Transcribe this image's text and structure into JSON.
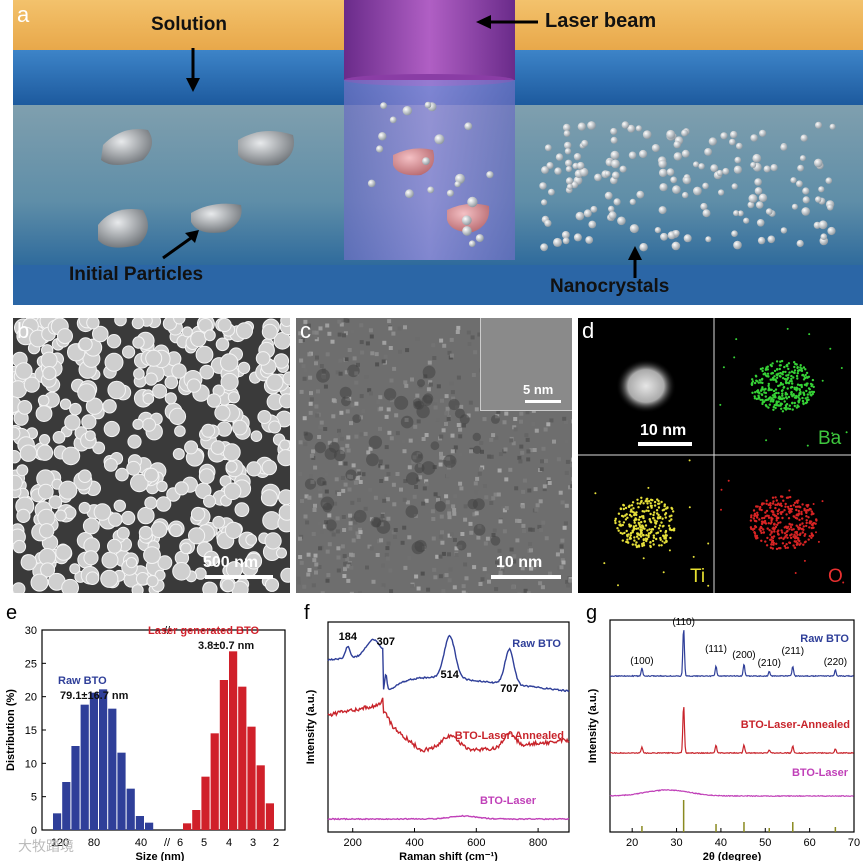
{
  "panel_a": {
    "letter": "a",
    "solution_label": "Solution",
    "laser_label": "Laser beam",
    "particles_label": "Initial Particles",
    "nano_label": "Nanocrystals"
  },
  "panel_b": {
    "letter": "b",
    "scale": "500 nm"
  },
  "panel_c": {
    "letter": "c",
    "scale": "10 nm",
    "inset_scale": "5 nm"
  },
  "panel_d": {
    "letter": "d",
    "scale": "10 nm",
    "ba": "Ba",
    "ti": "Ti",
    "o": "O"
  },
  "panel_e": {
    "letter": "e"
  },
  "panel_f": {
    "letter": "f"
  },
  "panel_g": {
    "letter": "g"
  },
  "watermark": "大牧踏境",
  "chart_data": [
    {
      "type": "bar",
      "panel": "e",
      "ylabel": "Distribution (%)",
      "xlabel": "Size (nm)",
      "ylim": [
        0,
        30
      ],
      "yticks": [
        0,
        5,
        10,
        15,
        20,
        25,
        30
      ],
      "left_axis_ticks": [
        "120",
        "80",
        "40"
      ],
      "right_axis_ticks": [
        "6",
        "5",
        "4",
        "3",
        "2"
      ],
      "series": [
        {
          "name": "Raw BTO",
          "annotation": "79.1±16.7 nm",
          "color": "#2f3f99",
          "values": [
            2.5,
            7.2,
            12.6,
            18.8,
            20.6,
            21.1,
            18.2,
            11.6,
            6.2,
            2.1,
            1.1
          ]
        },
        {
          "name": "Laser generated BTO",
          "annotation": "3.8±0.7 nm",
          "color": "#d0202a",
          "values": [
            1.0,
            3.0,
            8.0,
            14.5,
            22.5,
            26.8,
            21.5,
            15.5,
            9.7,
            4.0
          ]
        }
      ]
    },
    {
      "type": "line",
      "panel": "f",
      "xlabel": "Raman shift (cm⁻¹)",
      "ylabel": "Intensity (a.u.)",
      "xticks": [
        200,
        400,
        600,
        800
      ],
      "xlim": [
        120,
        900
      ],
      "peak_labels": [
        "184",
        "307",
        "514",
        "707"
      ],
      "series": [
        {
          "name": "Raw BTO",
          "color": "#2f3f99"
        },
        {
          "name": "BTO-Laser-Annealed",
          "color": "#c8242b"
        },
        {
          "name": "BTO-Laser",
          "color": "#c040b8"
        }
      ]
    },
    {
      "type": "line",
      "panel": "g",
      "xlabel": "2θ (degree)",
      "ylabel": "Intensity (a.u.)",
      "xticks": [
        20,
        30,
        40,
        50,
        60,
        70
      ],
      "xlim": [
        15,
        70
      ],
      "peaks": [
        {
          "label": "(100)",
          "x": 22.2
        },
        {
          "label": "(110)",
          "x": 31.6
        },
        {
          "label": "(111)",
          "x": 38.9
        },
        {
          "label": "(200)",
          "x": 45.2
        },
        {
          "label": "(210)",
          "x": 50.9
        },
        {
          "label": "(211)",
          "x": 56.2
        },
        {
          "label": "(220)",
          "x": 65.8
        }
      ],
      "series": [
        {
          "name": "Raw BTO",
          "color": "#2f3f99"
        },
        {
          "name": "BTO-Laser-Annealed",
          "color": "#c8242b"
        },
        {
          "name": "BTO-Laser",
          "color": "#c040b8"
        }
      ]
    }
  ]
}
